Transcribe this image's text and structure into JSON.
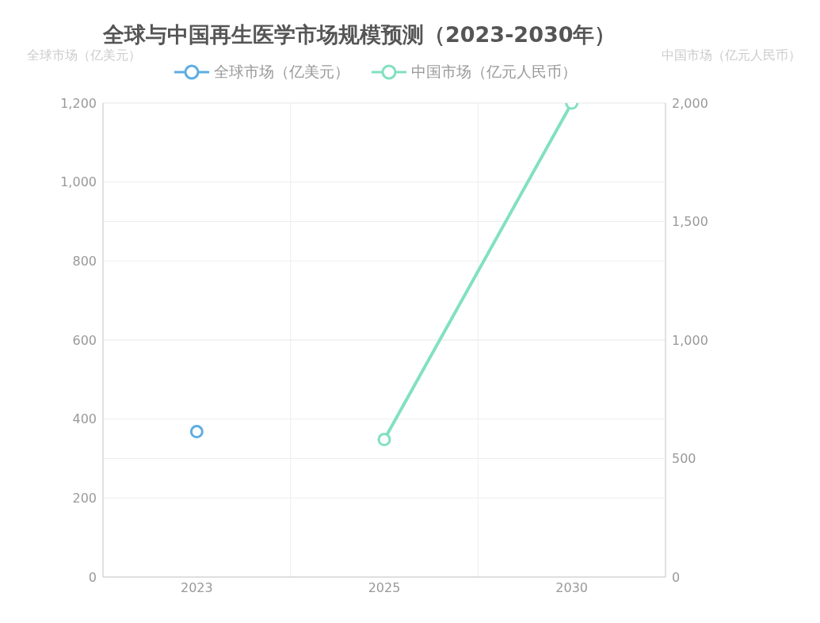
{
  "chart_data": {
    "type": "line",
    "title": "全球与中国再生医学市场规模预测（2023-2030年）",
    "ylabel": "全球市场（亿美元）",
    "y2label": "中国市场（亿元人民币）",
    "categories": [
      "2023",
      "2025",
      "2030"
    ],
    "series": [
      {
        "name": "全球市场（亿美元）",
        "color": "#5dade2",
        "values": [
          368,
          null,
          null
        ]
      },
      {
        "name": "中国市场（亿元人民币）",
        "color": "#82e0c2",
        "values": [
          null,
          580,
          2000
        ],
        "axis": "y2"
      }
    ],
    "ylim": [
      0,
      1200
    ],
    "yticks": [
      0,
      200,
      400,
      600,
      800,
      {
        "value": 1000,
        "label": "1,000"
      },
      {
        "value": 1200,
        "label": "1,200"
      }
    ],
    "y2lim": [
      0,
      2000
    ],
    "y2ticks": [
      0,
      500,
      {
        "value": 1000,
        "label": "1,000"
      },
      {
        "value": 1500,
        "label": "1,500"
      },
      {
        "value": 2000,
        "label": "2,000"
      }
    ],
    "grid": true,
    "legend": "top",
    "marker": "circle",
    "line_style": "solid"
  }
}
